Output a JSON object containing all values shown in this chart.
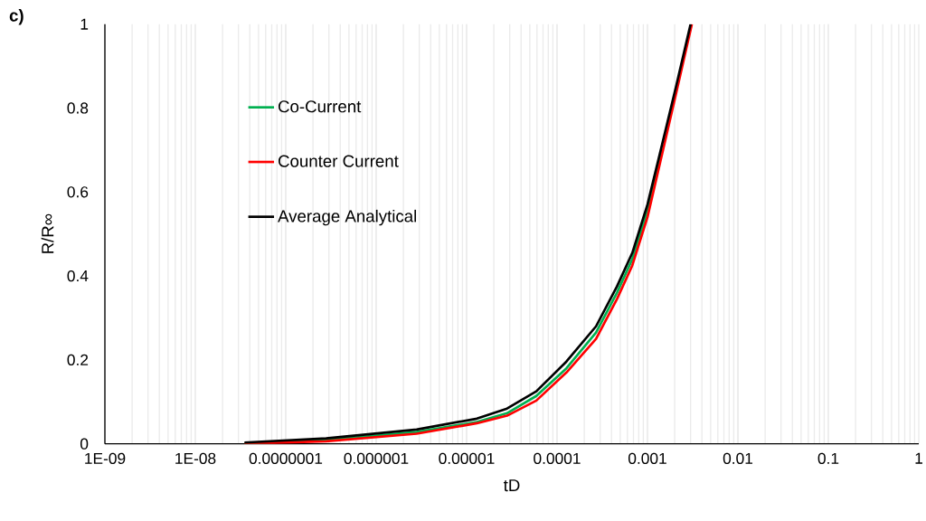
{
  "chart_data": {
    "type": "line",
    "xlabel": "tD",
    "ylabel": "R/R∞",
    "annotations": [
      "c)"
    ],
    "log": "x",
    "grid": "x",
    "legend": "top left",
    "xlim": [
      1e-09,
      1
    ],
    "ylim": [
      0,
      1
    ],
    "xticks": [
      {
        "value": 1e-09,
        "label": "1E-09"
      },
      {
        "value": 1e-08,
        "label": "1E-08"
      },
      {
        "value": 1e-07,
        "label": "0.0000001"
      },
      {
        "value": 1e-06,
        "label": "0.000001"
      },
      {
        "value": 1e-05,
        "label": "0.00001"
      },
      {
        "value": 0.0001,
        "label": "0.0001"
      },
      {
        "value": 0.001,
        "label": "0.001"
      },
      {
        "value": 0.01,
        "label": "0.01"
      },
      {
        "value": 0.1,
        "label": "0.1"
      },
      {
        "value": 1,
        "label": "1"
      }
    ],
    "yticks": [
      0,
      0.2,
      0.4,
      0.6,
      0.8,
      1
    ],
    "series": [
      {
        "name": "Co-Current",
        "color": "#00b050",
        "x": [
          3.5e-08,
          2.8e-07,
          2.8e-06,
          1.3e-05,
          2.8e-05,
          5.9e-05,
          0.000127,
          0.00027,
          0.00046,
          0.00068,
          0.001,
          0.00145
        ],
        "values": [
          0.001,
          0.009,
          0.028,
          0.052,
          0.073,
          0.114,
          0.18,
          0.265,
          0.36,
          0.44,
          0.555,
          0.7
        ]
      },
      {
        "name": "Counter Current",
        "color": "#ff0000",
        "x": [
          3.5e-08,
          2.8e-07,
          2.8e-06,
          1.3e-05,
          2.8e-05,
          5.9e-05,
          0.000127,
          0.00027,
          0.00046,
          0.00068,
          0.001,
          0.00145,
          0.0021,
          0.0031
        ],
        "values": [
          0.0,
          0.006,
          0.024,
          0.049,
          0.067,
          0.103,
          0.17,
          0.25,
          0.345,
          0.425,
          0.54,
          0.69,
          0.84,
          1.0
        ]
      },
      {
        "name": "Average Analytical",
        "color": "#000000",
        "x": [
          3.5e-08,
          2.8e-07,
          2.8e-06,
          1.3e-05,
          2.8e-05,
          5.9e-05,
          0.000127,
          0.00027,
          0.00046,
          0.00068,
          0.001,
          0.00145,
          0.0021,
          0.003
        ],
        "values": [
          0.003,
          0.013,
          0.034,
          0.06,
          0.084,
          0.125,
          0.196,
          0.28,
          0.375,
          0.455,
          0.57,
          0.713,
          0.857,
          1.0
        ]
      }
    ]
  }
}
